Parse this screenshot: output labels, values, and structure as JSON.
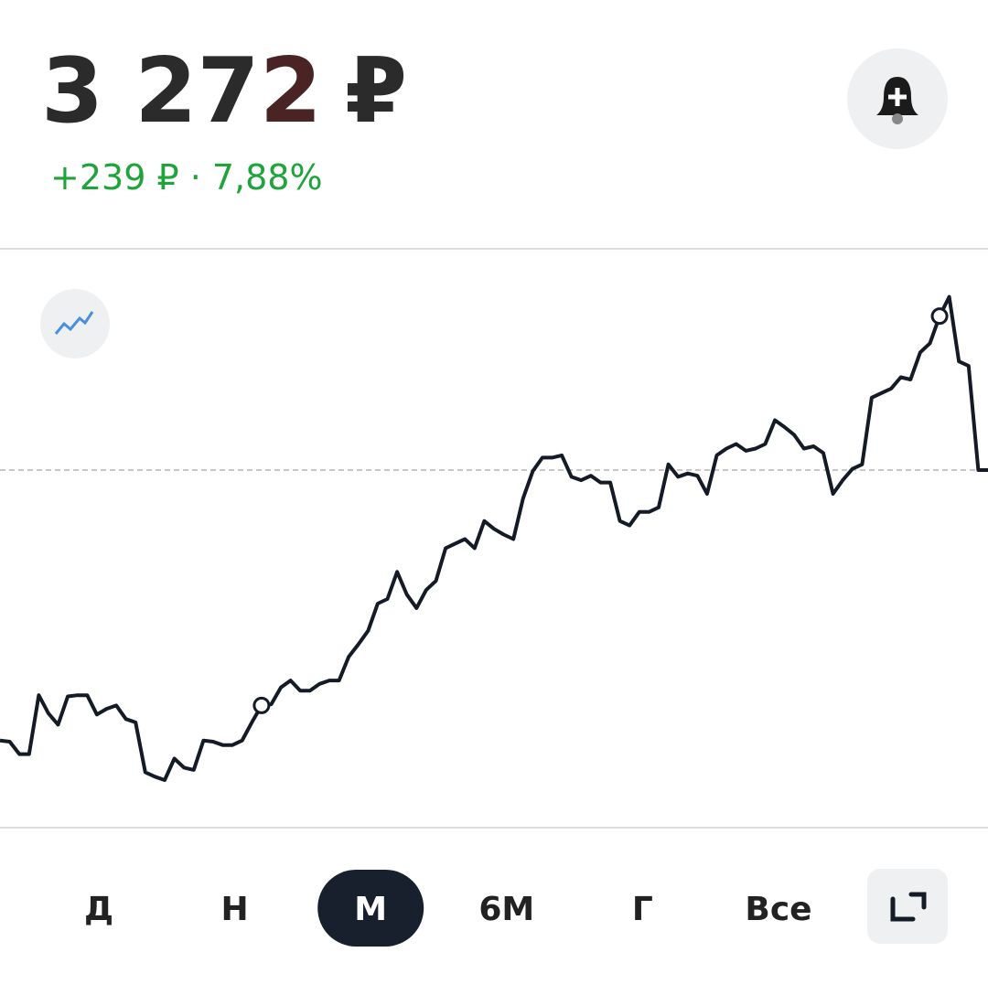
{
  "header": {
    "price": {
      "main": "3 27",
      "changed_digit": "2",
      "currency": "₽"
    },
    "change": "+239 ₽ · 7,88%"
  },
  "chart_data": {
    "type": "line",
    "color": "#141a26",
    "values": [
      3033,
      3032,
      3021,
      3021,
      3073,
      3057,
      3047,
      3072,
      3073,
      3073,
      3056,
      3061,
      3064,
      3052,
      3049,
      3005,
      3001,
      2998,
      3017,
      3009,
      3007,
      3033,
      3032,
      3029,
      3029,
      3033,
      3049,
      3064,
      3065,
      3080,
      3086,
      3077,
      3077,
      3083,
      3086,
      3086,
      3107,
      3118,
      3130,
      3154,
      3158,
      3182,
      3162,
      3150,
      3166,
      3174,
      3203,
      3207,
      3211,
      3203,
      3227,
      3220,
      3215,
      3211,
      3247,
      3271,
      3283,
      3283,
      3285,
      3266,
      3263,
      3267,
      3261,
      3261,
      3227,
      3223,
      3235,
      3235,
      3239,
      3277,
      3266,
      3269,
      3267,
      3251,
      3285,
      3291,
      3295,
      3289,
      3291,
      3295,
      3316,
      3310,
      3303,
      3291,
      3293,
      3287,
      3251,
      3263,
      3273,
      3277,
      3336,
      3340,
      3344,
      3354,
      3352,
      3376,
      3384,
      3408,
      3425,
      3368,
      3364,
      3272,
      3272
    ],
    "ylim": [
      2956,
      3453
    ],
    "reference_value": 3272
  },
  "periods": {
    "items": [
      "Д",
      "Н",
      "М",
      "6М",
      "Г",
      "Все"
    ],
    "active": 2
  }
}
